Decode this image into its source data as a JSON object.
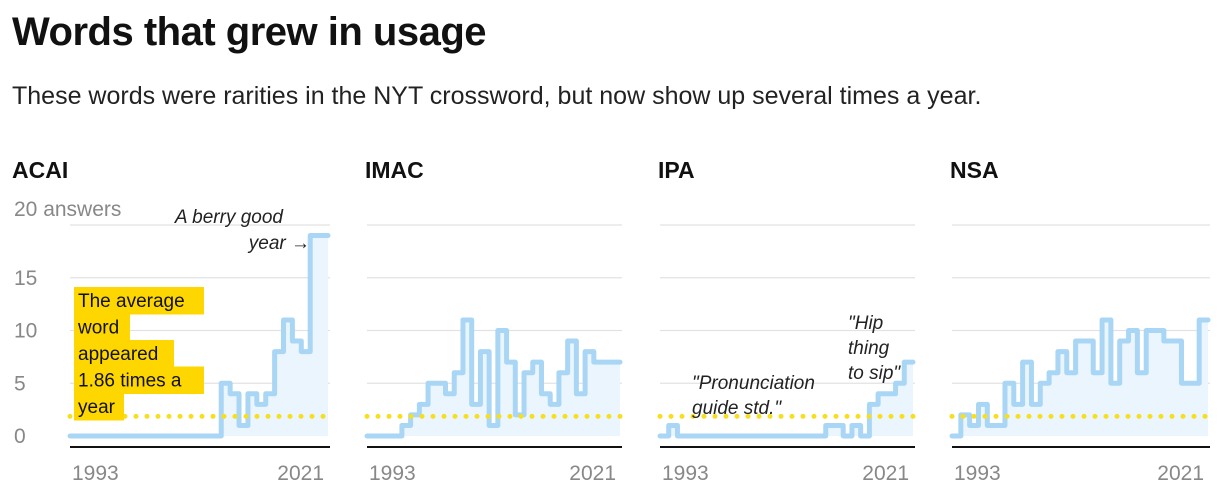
{
  "title": "Words that grew in usage",
  "subtitle": "These words were rarities in the NYT crossword, but now show up several times a year.",
  "colors": {
    "line": "#a9d6f5",
    "fill": "#eaf5fd",
    "average": "#f7df1e",
    "highlight": "#ffd700",
    "grid": "#e2e2e2",
    "axis": "#111111",
    "tick": "#888888"
  },
  "chart_data": {
    "type": "line",
    "subtype": "step",
    "x_start": 1993,
    "x_end": 2021,
    "xticks": [
      "1993",
      "2021"
    ],
    "ylim": [
      0,
      20
    ],
    "yticks": [
      0,
      5,
      10,
      15,
      20
    ],
    "ytick_labels": [
      "0",
      "5",
      "10",
      "15",
      "20 answers"
    ],
    "average": 1.86,
    "average_label_lines": [
      "The average",
      "word",
      "appeared",
      "1.86 times a",
      "year"
    ],
    "grid": true,
    "series": [
      {
        "name": "ACAI",
        "x": [
          1993,
          1994,
          1995,
          1996,
          1997,
          1998,
          1999,
          2000,
          2001,
          2002,
          2003,
          2004,
          2005,
          2006,
          2007,
          2008,
          2009,
          2010,
          2011,
          2012,
          2013,
          2014,
          2015,
          2016,
          2017,
          2018,
          2019,
          2020,
          2021
        ],
        "y": [
          0,
          0,
          0,
          0,
          0,
          0,
          0,
          0,
          0,
          0,
          0,
          0,
          0,
          0,
          0,
          0,
          0,
          5,
          4,
          1,
          4,
          3,
          4,
          8,
          11,
          9,
          8,
          19,
          19
        ]
      },
      {
        "name": "IMAC",
        "x": [
          1993,
          1994,
          1995,
          1996,
          1997,
          1998,
          1999,
          2000,
          2001,
          2002,
          2003,
          2004,
          2005,
          2006,
          2007,
          2008,
          2009,
          2010,
          2011,
          2012,
          2013,
          2014,
          2015,
          2016,
          2017,
          2018,
          2019,
          2020,
          2021
        ],
        "y": [
          0,
          0,
          0,
          0,
          1,
          2,
          3,
          5,
          5,
          4,
          6,
          11,
          3,
          8,
          1,
          10,
          7,
          2,
          6,
          7,
          4,
          3,
          6,
          9,
          4,
          8,
          7,
          7,
          7
        ]
      },
      {
        "name": "IPA",
        "x": [
          1993,
          1994,
          1995,
          1996,
          1997,
          1998,
          1999,
          2000,
          2001,
          2002,
          2003,
          2004,
          2005,
          2006,
          2007,
          2008,
          2009,
          2010,
          2011,
          2012,
          2013,
          2014,
          2015,
          2016,
          2017,
          2018,
          2019,
          2020,
          2021
        ],
        "y": [
          0,
          1,
          0,
          0,
          0,
          0,
          0,
          0,
          0,
          0,
          0,
          0,
          0,
          0,
          0,
          0,
          0,
          0,
          0,
          1,
          1,
          0,
          1,
          0,
          3,
          4,
          4,
          5,
          7
        ]
      },
      {
        "name": "NSA",
        "x": [
          1993,
          1994,
          1995,
          1996,
          1997,
          1998,
          1999,
          2000,
          2001,
          2002,
          2003,
          2004,
          2005,
          2006,
          2007,
          2008,
          2009,
          2010,
          2011,
          2012,
          2013,
          2014,
          2015,
          2016,
          2017,
          2018,
          2019,
          2020,
          2021
        ],
        "y": [
          0,
          2,
          1,
          3,
          1,
          1,
          5,
          3,
          7,
          3,
          5,
          6,
          8,
          6,
          9,
          9,
          6,
          11,
          5,
          9,
          10,
          6,
          10,
          10,
          9,
          9,
          5,
          5,
          11
        ]
      }
    ],
    "annotations": [
      {
        "panel": 0,
        "lines": [
          "A berry good",
          "year →"
        ]
      },
      {
        "panel": 2,
        "lines": [
          "\"Pronunciation",
          "guide std.\""
        ]
      },
      {
        "panel": 2,
        "lines": [
          "\"Hip",
          "thing",
          "to sip\""
        ]
      }
    ]
  }
}
